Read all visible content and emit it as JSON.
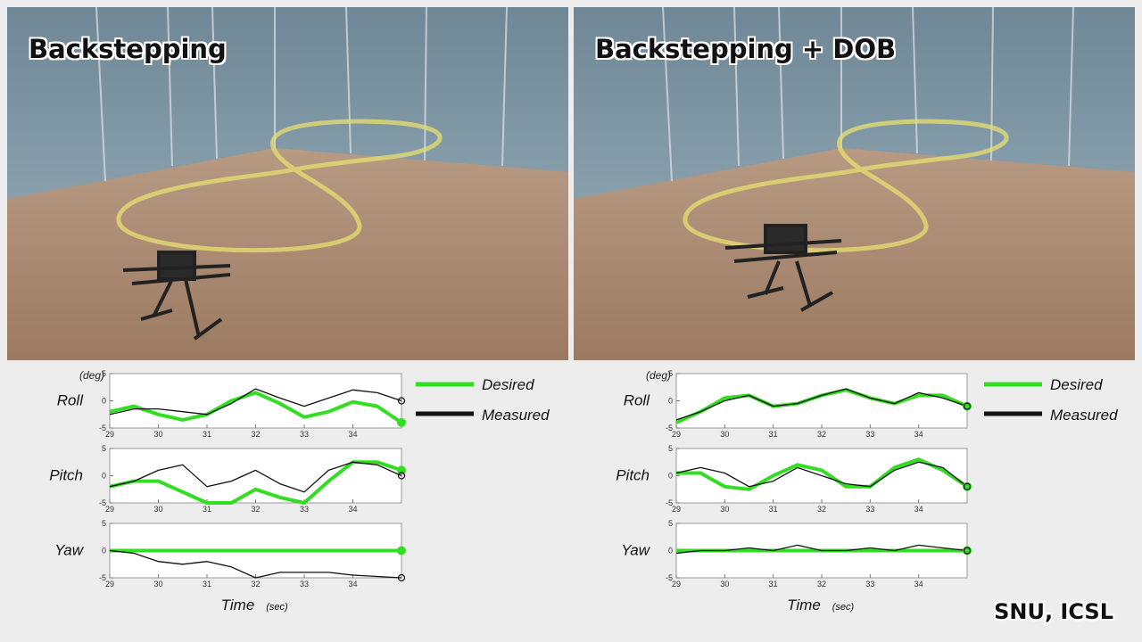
{
  "panels": [
    {
      "title": "Backstepping"
    },
    {
      "title": "Backstepping  + DOB"
    }
  ],
  "credit": "SNU, ICSL",
  "colors": {
    "desired": "#33dd22",
    "measured": "#111111",
    "trajectory": "#e8e070"
  },
  "chart_data": [
    {
      "type": "line",
      "panel": "Backstepping",
      "unit_label": "(deg)",
      "xlabel": "Time",
      "xlabel_unit": "(sec)",
      "xlim": [
        29,
        35
      ],
      "ylim": [
        -5,
        5
      ],
      "xticks": [
        29,
        30,
        31,
        32,
        33,
        34
      ],
      "yticks": [
        -5,
        0,
        5
      ],
      "legend": {
        "position": "right",
        "entries": [
          "Desired",
          "Measured"
        ]
      },
      "subplots": [
        {
          "name": "Roll",
          "desired": [
            [
              29,
              -2
            ],
            [
              29.5,
              -1
            ],
            [
              30,
              -2.5
            ],
            [
              30.5,
              -3.5
            ],
            [
              31,
              -2.5
            ],
            [
              31.5,
              0
            ],
            [
              32,
              1.5
            ],
            [
              32.5,
              -0.5
            ],
            [
              33,
              -3
            ],
            [
              33.5,
              -2
            ],
            [
              34,
              -0.2
            ],
            [
              34.5,
              -1
            ],
            [
              35,
              -4
            ]
          ],
          "measured": [
            [
              29,
              -2.5
            ],
            [
              29.5,
              -1.5
            ],
            [
              30,
              -1.5
            ],
            [
              30.5,
              -2
            ],
            [
              31,
              -2.5
            ],
            [
              31.5,
              -0.5
            ],
            [
              32,
              2.2
            ],
            [
              32.5,
              0.5
            ],
            [
              33,
              -1
            ],
            [
              33.5,
              0.5
            ],
            [
              34,
              2
            ],
            [
              34.5,
              1.5
            ],
            [
              35,
              0
            ]
          ]
        },
        {
          "name": "Pitch",
          "desired": [
            [
              29,
              -2
            ],
            [
              29.5,
              -1
            ],
            [
              30,
              -1
            ],
            [
              30.5,
              -3
            ],
            [
              31,
              -5
            ],
            [
              31.5,
              -5
            ],
            [
              32,
              -2.5
            ],
            [
              32.5,
              -4
            ],
            [
              33,
              -5
            ],
            [
              33.5,
              -1
            ],
            [
              34,
              2.5
            ],
            [
              34.5,
              2.5
            ],
            [
              35,
              1
            ]
          ],
          "measured": [
            [
              29,
              -2
            ],
            [
              29.5,
              -1
            ],
            [
              30,
              1
            ],
            [
              30.5,
              2
            ],
            [
              31,
              -2
            ],
            [
              31.5,
              -1
            ],
            [
              32,
              1
            ],
            [
              32.5,
              -1.5
            ],
            [
              33,
              -3
            ],
            [
              33.5,
              1
            ],
            [
              34,
              2.5
            ],
            [
              34.5,
              2
            ],
            [
              35,
              0
            ]
          ]
        },
        {
          "name": "Yaw",
          "desired": [
            [
              29,
              0
            ],
            [
              35,
              0
            ]
          ],
          "measured": [
            [
              29,
              0
            ],
            [
              29.5,
              -0.5
            ],
            [
              30,
              -2
            ],
            [
              30.5,
              -2.5
            ],
            [
              31,
              -2
            ],
            [
              31.5,
              -3
            ],
            [
              32,
              -5
            ],
            [
              32.5,
              -4
            ],
            [
              33,
              -4
            ],
            [
              33.5,
              -4
            ],
            [
              34,
              -4.5
            ],
            [
              35,
              -5
            ]
          ]
        }
      ]
    },
    {
      "type": "line",
      "panel": "Backstepping  + DOB",
      "unit_label": "(deg)",
      "xlabel": "Time",
      "xlabel_unit": "(sec)",
      "xlim": [
        29,
        35
      ],
      "ylim": [
        -5,
        5
      ],
      "xticks": [
        29,
        30,
        31,
        32,
        33,
        34
      ],
      "yticks": [
        -5,
        0,
        5
      ],
      "legend": {
        "position": "right",
        "entries": [
          "Desired",
          "Measured"
        ]
      },
      "subplots": [
        {
          "name": "Roll",
          "desired": [
            [
              29,
              -4
            ],
            [
              29.5,
              -2
            ],
            [
              30,
              0.5
            ],
            [
              30.5,
              1
            ],
            [
              31,
              -1
            ],
            [
              31.5,
              -0.5
            ],
            [
              32,
              1
            ],
            [
              32.5,
              2
            ],
            [
              33,
              0.5
            ],
            [
              33.5,
              -0.5
            ],
            [
              34,
              1
            ],
            [
              34.5,
              1
            ],
            [
              35,
              -1
            ]
          ],
          "measured": [
            [
              29,
              -3.5
            ],
            [
              29.5,
              -2
            ],
            [
              30,
              0
            ],
            [
              30.5,
              1
            ],
            [
              31,
              -1
            ],
            [
              31.5,
              -0.5
            ],
            [
              32,
              1
            ],
            [
              32.5,
              2.2
            ],
            [
              33,
              0.5
            ],
            [
              33.5,
              -0.5
            ],
            [
              34,
              1.5
            ],
            [
              34.5,
              0.5
            ],
            [
              35,
              -1
            ]
          ]
        },
        {
          "name": "Pitch",
          "desired": [
            [
              29,
              0.5
            ],
            [
              29.5,
              0.5
            ],
            [
              30,
              -2
            ],
            [
              30.5,
              -2.5
            ],
            [
              31,
              0
            ],
            [
              31.5,
              2
            ],
            [
              32,
              1
            ],
            [
              32.5,
              -2
            ],
            [
              33,
              -2
            ],
            [
              33.5,
              1.5
            ],
            [
              34,
              3
            ],
            [
              34.5,
              1
            ],
            [
              35,
              -2
            ]
          ],
          "measured": [
            [
              29,
              0.5
            ],
            [
              29.5,
              1.5
            ],
            [
              30,
              0.5
            ],
            [
              30.5,
              -2
            ],
            [
              31,
              -1
            ],
            [
              31.5,
              1.5
            ],
            [
              32,
              0
            ],
            [
              32.5,
              -1.5
            ],
            [
              33,
              -2
            ],
            [
              33.5,
              1
            ],
            [
              34,
              2.5
            ],
            [
              34.5,
              1.5
            ],
            [
              35,
              -2
            ]
          ]
        },
        {
          "name": "Yaw",
          "desired": [
            [
              29,
              0
            ],
            [
              35,
              0
            ]
          ],
          "measured": [
            [
              29,
              -0.5
            ],
            [
              29.5,
              0
            ],
            [
              30,
              0
            ],
            [
              30.5,
              0.5
            ],
            [
              31,
              0
            ],
            [
              31.5,
              1
            ],
            [
              32,
              0
            ],
            [
              32.5,
              0
            ],
            [
              33,
              0.5
            ],
            [
              33.5,
              0
            ],
            [
              34,
              1
            ],
            [
              34.5,
              0.5
            ],
            [
              35,
              0
            ]
          ]
        }
      ]
    }
  ]
}
